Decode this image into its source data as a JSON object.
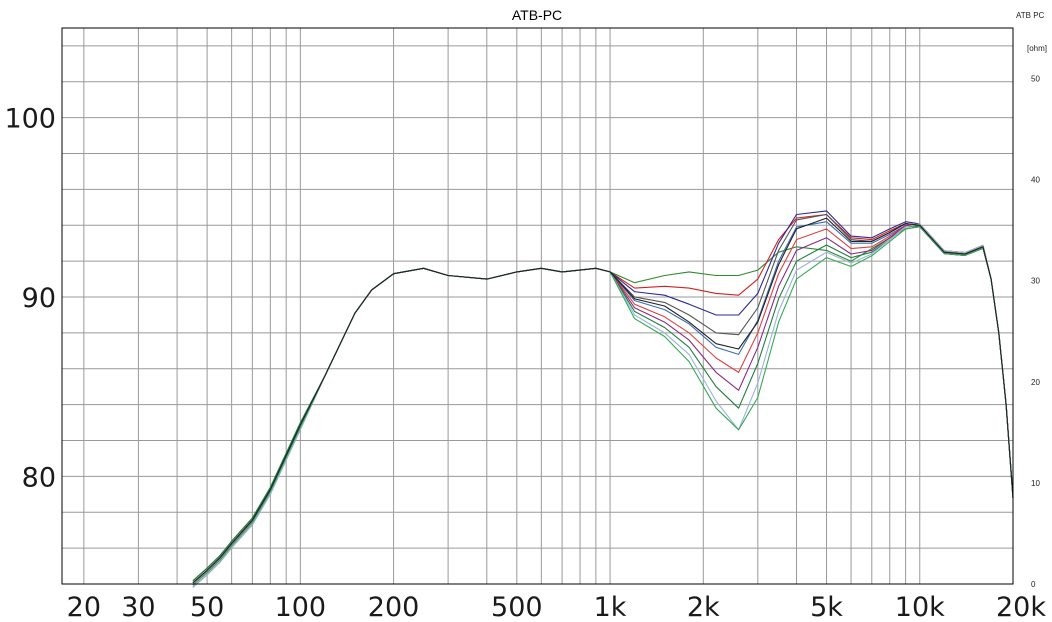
{
  "chart_data": {
    "type": "line",
    "title": "ATB-PC",
    "corner_label": "ATB PC",
    "y2_unit_label": "[ohm]",
    "x_scale": "log",
    "xlim": [
      17,
      20000
    ],
    "ylim": [
      74,
      105
    ],
    "y2lim": [
      0,
      55
    ],
    "grid": true,
    "x_ticks": [
      {
        "value": 20,
        "label": "20"
      },
      {
        "value": 30,
        "label": "30"
      },
      {
        "value": 50,
        "label": "50"
      },
      {
        "value": 100,
        "label": "100"
      },
      {
        "value": 200,
        "label": "200"
      },
      {
        "value": 500,
        "label": "500"
      },
      {
        "value": 1000,
        "label": "1k"
      },
      {
        "value": 2000,
        "label": "2k"
      },
      {
        "value": 5000,
        "label": "5k"
      },
      {
        "value": 10000,
        "label": "10k"
      },
      {
        "value": 20000,
        "label": "20k"
      }
    ],
    "y_ticks": [
      {
        "value": 80,
        "label": "80"
      },
      {
        "value": 90,
        "label": "90"
      },
      {
        "value": 100,
        "label": "100"
      }
    ],
    "y2_ticks": [
      {
        "value": 0,
        "label": "0"
      },
      {
        "value": 10,
        "label": "10"
      },
      {
        "value": 20,
        "label": "20"
      },
      {
        "value": 30,
        "label": "30"
      },
      {
        "value": 40,
        "label": "40"
      },
      {
        "value": 50,
        "label": "50"
      }
    ],
    "x_grid": [
      20,
      30,
      40,
      50,
      60,
      70,
      80,
      90,
      100,
      200,
      300,
      400,
      500,
      600,
      700,
      800,
      900,
      1000,
      2000,
      3000,
      4000,
      5000,
      6000,
      7000,
      8000,
      9000,
      10000,
      20000
    ],
    "y_grid": [
      74,
      76,
      78,
      80,
      82,
      84,
      86,
      88,
      90,
      92,
      94,
      96,
      98,
      100,
      102,
      104
    ],
    "common_curve": {
      "x": [
        45,
        50,
        55,
        60,
        70,
        80,
        100,
        120,
        150,
        170,
        200,
        250,
        300,
        400,
        500,
        600,
        700,
        800,
        900,
        1000
      ],
      "y": [
        74,
        74.7,
        75.4,
        76.2,
        77.5,
        79.2,
        82.8,
        85.6,
        89.1,
        90.4,
        91.3,
        91.6,
        91.2,
        91.0,
        91.4,
        91.6,
        91.4,
        91.5,
        91.6,
        91.4
      ]
    },
    "tail_curve": {
      "x": [
        10000,
        12000,
        14000,
        16000,
        17000,
        18000,
        19000,
        20000
      ],
      "y": [
        94.0,
        92.5,
        92.4,
        92.8,
        91.0,
        88.0,
        84.0,
        78.8
      ]
    },
    "series": [
      {
        "color": "#2e8b2e",
        "x": [
          1000,
          1200,
          1500,
          1800,
          2200,
          2600,
          3000,
          3500,
          4000,
          5000,
          6000,
          7000,
          8000,
          9000
        ],
        "y": [
          91.3,
          90.8,
          91.2,
          91.4,
          91.2,
          91.2,
          91.5,
          92.5,
          92.8,
          92.6,
          92.0,
          92.7,
          93.3,
          93.8
        ]
      },
      {
        "color": "#d42020",
        "x": [
          1000,
          1200,
          1500,
          1800,
          2200,
          2600,
          3000,
          3500,
          4000,
          5000,
          6000,
          7000,
          8000,
          9000
        ],
        "y": [
          91.2,
          90.5,
          90.6,
          90.5,
          90.2,
          90.1,
          91.0,
          93.2,
          94.4,
          94.6,
          93.3,
          93.2,
          93.7,
          94.1
        ]
      },
      {
        "color": "#2a2a9a",
        "x": [
          1000,
          1200,
          1500,
          1800,
          2200,
          2600,
          3000,
          3500,
          4000,
          5000,
          6000,
          7000,
          8000,
          9000
        ],
        "y": [
          91.2,
          90.3,
          90.1,
          89.6,
          89.0,
          89.0,
          90.2,
          93.0,
          94.6,
          94.8,
          93.4,
          93.3,
          93.8,
          94.2
        ]
      },
      {
        "color": "#555555",
        "x": [
          1000,
          1200,
          1500,
          1800,
          2200,
          2600,
          3000,
          3500,
          4000,
          5000,
          6000,
          7000,
          8000,
          9000
        ],
        "y": [
          91.1,
          90.0,
          89.7,
          89.0,
          88.0,
          87.9,
          89.4,
          92.6,
          94.3,
          94.6,
          93.2,
          93.1,
          93.6,
          94.1
        ]
      },
      {
        "color": "#3b6fb5",
        "x": [
          1000,
          1200,
          1500,
          1800,
          2200,
          2600,
          3000,
          3500,
          4000,
          5000,
          6000,
          7000,
          8000,
          9000
        ],
        "y": [
          91.1,
          89.8,
          89.3,
          88.5,
          87.2,
          86.8,
          88.7,
          92.0,
          93.9,
          94.2,
          93.0,
          93.0,
          93.5,
          94.0
        ]
      },
      {
        "color": "#e04040",
        "x": [
          1000,
          1200,
          1500,
          1800,
          2200,
          2600,
          3000,
          3500,
          4000,
          5000,
          6000,
          7000,
          8000,
          9000
        ],
        "y": [
          91.0,
          89.6,
          88.9,
          88.0,
          86.6,
          85.8,
          88.0,
          91.3,
          93.2,
          93.8,
          92.7,
          92.8,
          93.4,
          94.0
        ]
      },
      {
        "color": "#8a2a8a",
        "x": [
          1000,
          1200,
          1500,
          1800,
          2200,
          2600,
          3000,
          3500,
          4000,
          5000,
          6000,
          7000,
          8000,
          9000
        ],
        "y": [
          91.0,
          89.4,
          88.6,
          87.6,
          85.8,
          84.8,
          87.2,
          90.6,
          92.6,
          93.3,
          92.4,
          92.6,
          93.3,
          94.0
        ]
      },
      {
        "color": "#1f7f3f",
        "x": [
          1000,
          1200,
          1500,
          1800,
          2200,
          2600,
          3000,
          3500,
          4000,
          5000,
          6000,
          7000,
          8000,
          9000
        ],
        "y": [
          91.0,
          89.2,
          88.3,
          87.2,
          85.0,
          83.8,
          86.3,
          89.9,
          92.0,
          92.9,
          92.2,
          92.5,
          93.2,
          93.9
        ]
      },
      {
        "color": "#9ab4d8",
        "x": [
          1000,
          1200,
          1500,
          1800,
          2200,
          2600,
          3000,
          3500,
          4000,
          5000,
          6000,
          7000,
          8000,
          9000
        ],
        "y": [
          90.9,
          89.0,
          88.0,
          86.8,
          84.2,
          82.6,
          85.2,
          89.2,
          91.5,
          92.5,
          91.9,
          92.4,
          93.2,
          93.9
        ]
      },
      {
        "color": "#33aa55",
        "x": [
          1000,
          1200,
          1500,
          1800,
          2200,
          2600,
          3000,
          3500,
          4000,
          5000,
          6000,
          7000,
          8000,
          9000
        ],
        "y": [
          90.9,
          88.8,
          87.8,
          86.4,
          83.8,
          82.6,
          84.4,
          88.6,
          91.0,
          92.2,
          91.7,
          92.3,
          93.1,
          93.8
        ]
      },
      {
        "color": "#222222",
        "x": [
          1000,
          1200,
          1500,
          1800,
          2200,
          2600,
          3000,
          3500,
          4000,
          5000,
          6000,
          7000,
          8000,
          9000
        ],
        "y": [
          91.1,
          89.9,
          89.5,
          88.6,
          87.4,
          87.1,
          88.6,
          91.8,
          93.8,
          94.4,
          93.1,
          93.1,
          93.6,
          94.1
        ]
      }
    ]
  }
}
